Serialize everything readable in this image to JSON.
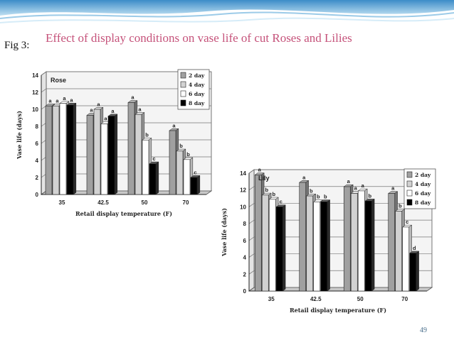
{
  "slide": {
    "fig_label": "Fig 3:",
    "title": "Effect of display conditions on vase life of cut Roses and Lilies",
    "page_number": "49",
    "colors": {
      "title": "#c5527a",
      "header_band": "#3c8cc8"
    }
  },
  "chart_data": [
    {
      "type": "bar",
      "title": "Rose",
      "xlabel": "Retail display temperature (F)",
      "ylabel": "Vase life (days)",
      "categories": [
        "35",
        "42.5",
        "50",
        "70"
      ],
      "ylim": [
        0,
        14
      ],
      "yticks": [
        0,
        2,
        4,
        6,
        8,
        10,
        12,
        14
      ],
      "grid": true,
      "legend_position": "top-right",
      "series": [
        {
          "name": "2 day",
          "color": "#a0a0a0",
          "values": [
            10.4,
            9.3,
            10.8,
            7.5
          ],
          "labels": [
            "a",
            "a",
            "a",
            "a"
          ]
        },
        {
          "name": "4 day",
          "color": "#d2d2d2",
          "values": [
            10.4,
            10.0,
            9.4,
            5.1
          ],
          "labels": [
            "a",
            "a",
            "a",
            "b"
          ]
        },
        {
          "name": "6 day",
          "color": "#ffffff",
          "values": [
            10.7,
            8.3,
            6.4,
            4.1
          ],
          "labels": [
            "a",
            "a",
            "b",
            "b"
          ]
        },
        {
          "name": "8 day",
          "color": "#000000",
          "values": [
            10.5,
            9.2,
            3.6,
            2.0
          ],
          "labels": [
            "a",
            "a",
            "c",
            "c"
          ]
        }
      ]
    },
    {
      "type": "bar",
      "title": "Lily",
      "xlabel": "Retail display temperature (F)",
      "ylabel": "Vase life (days)",
      "categories": [
        "35",
        "42.5",
        "50",
        "70"
      ],
      "ylim": [
        0,
        14
      ],
      "yticks": [
        0,
        2,
        4,
        6,
        8,
        10,
        12,
        14
      ],
      "grid": true,
      "legend_position": "top-right",
      "series": [
        {
          "name": "2 day",
          "color": "#a0a0a0",
          "values": [
            13.8,
            12.9,
            12.4,
            11.6
          ],
          "labels": [
            "a",
            "a",
            "a",
            "a"
          ]
        },
        {
          "name": "4 day",
          "color": "#d2d2d2",
          "values": [
            11.4,
            11.3,
            11.6,
            9.5
          ],
          "labels": [
            "b",
            "b",
            "a",
            "b"
          ]
        },
        {
          "name": "6 day",
          "color": "#ffffff",
          "values": [
            10.9,
            10.6,
            11.9,
            7.6
          ],
          "labels": [
            "b",
            "b",
            "a",
            "c"
          ]
        },
        {
          "name": "8 day",
          "color": "#000000",
          "values": [
            10.0,
            10.6,
            10.7,
            4.5
          ],
          "labels": [
            "c",
            "b",
            "b",
            "d"
          ]
        }
      ]
    }
  ]
}
